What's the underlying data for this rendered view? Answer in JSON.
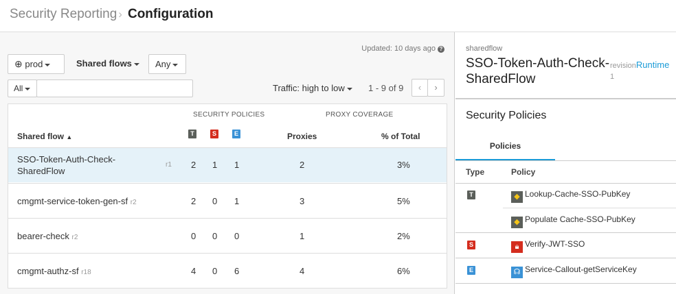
{
  "breadcrumb": {
    "parent": "Security Reporting",
    "current": "Configuration"
  },
  "toolbar": {
    "updated": "Updated: 10 days ago",
    "env": "prod",
    "type": "Shared flows",
    "filter": "Any",
    "search_scope": "All",
    "search_value": "",
    "sort": "Traffic: high to low",
    "pagination": "1 - 9 of 9"
  },
  "table": {
    "group_security": "SECURITY POLICIES",
    "group_coverage": "PROXY COVERAGE",
    "col_name": "Shared flow",
    "col_t": "T",
    "col_s": "S",
    "col_e": "E",
    "col_proxies": "Proxies",
    "col_pct": "% of Total",
    "rows": [
      {
        "name": "SSO-Token-Auth-Check-SharedFlow",
        "name1": "SSO-Token-Auth-Check-",
        "name2": "SharedFlow",
        "rev": "r1",
        "t": "2",
        "s": "1",
        "e": "1",
        "proxies": "2",
        "pct": "3%",
        "selected": true
      },
      {
        "name": "cmgmt-service-token-gen-sf",
        "rev": "r2",
        "t": "2",
        "s": "0",
        "e": "1",
        "proxies": "3",
        "pct": "5%"
      },
      {
        "name": "bearer-check",
        "rev": "r2",
        "t": "0",
        "s": "0",
        "e": "0",
        "proxies": "1",
        "pct": "2%"
      },
      {
        "name": "cmgmt-authz-sf",
        "rev": "r18",
        "t": "4",
        "s": "0",
        "e": "6",
        "proxies": "4",
        "pct": "6%"
      }
    ]
  },
  "detail": {
    "kind": "sharedflow",
    "title1": "SSO-Token-Auth-Check-",
    "title2": "SharedFlow",
    "revision_label": "revision",
    "revision": "1",
    "runtime_link": "Runtime",
    "section": "Security Policies",
    "tab": "Policies",
    "col_type": "Type",
    "col_policy": "Policy",
    "policies": [
      {
        "type": "T",
        "name": "Lookup-Cache-SSO-PubKey",
        "icon": "cache-icon"
      },
      {
        "type": "",
        "name": "Populate Cache-SSO-PubKey",
        "icon": "cache-icon"
      },
      {
        "type": "S",
        "name": "Verify-JWT-SSO",
        "icon": "lock-icon"
      },
      {
        "type": "E",
        "name": "Service-Callout-getServiceKey",
        "icon": "callout-icon"
      }
    ]
  },
  "colors": {
    "accent": "#1a9bd7",
    "selected_row": "#e5f2f9",
    "traffic": "#5b5f5a",
    "security": "#d42d1e",
    "extension": "#3a92d6",
    "cache_icon": "#f5c518"
  }
}
